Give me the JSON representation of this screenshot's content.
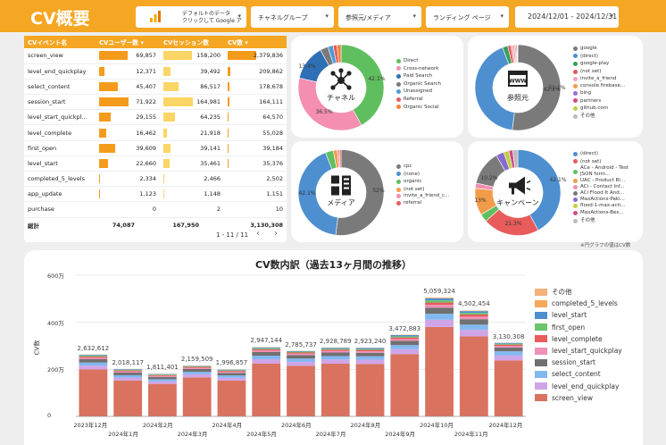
{
  "header": {
    "title": "CV概要",
    "filters": {
      "ga": "デフォルトのデータ\nクリックして Google ア",
      "channel": "チャネルグループ",
      "referrer": "参照元/メディア",
      "landing": "ランディング ページ",
      "date": "2024/12/01 - 2024/12/31"
    }
  },
  "table": {
    "headers": [
      "CVイベント名",
      "CVユーザー数 ▾",
      "CVセッション数",
      "CV数 ▾"
    ],
    "rows": [
      {
        "name": "screen_view",
        "users": "69,857",
        "users_v": 69857,
        "sessions": "158,200",
        "sessions_v": 158200,
        "cv": "2,379,836",
        "cv_v": 2379836
      },
      {
        "name": "level_end_quickplay",
        "users": "12,371",
        "users_v": 12371,
        "sessions": "39,492",
        "sessions_v": 39492,
        "cv": "209,862",
        "cv_v": 209862
      },
      {
        "name": "select_content",
        "users": "45,407",
        "users_v": 45407,
        "sessions": "86,517",
        "sessions_v": 86517,
        "cv": "178,678",
        "cv_v": 178678
      },
      {
        "name": "session_start",
        "users": "71,922",
        "users_v": 71922,
        "sessions": "164,981",
        "sessions_v": 164981,
        "cv": "164,111",
        "cv_v": 164111
      },
      {
        "name": "level_start_quickpl...",
        "users": "29,155",
        "users_v": 29155,
        "sessions": "64,235",
        "sessions_v": 64235,
        "cv": "64,570",
        "cv_v": 64570
      },
      {
        "name": "level_complete",
        "users": "16,462",
        "users_v": 16462,
        "sessions": "21,918",
        "sessions_v": 21918,
        "cv": "55,028",
        "cv_v": 55028
      },
      {
        "name": "first_open",
        "users": "39,609",
        "users_v": 39609,
        "sessions": "39,141",
        "sessions_v": 39141,
        "cv": "39,184",
        "cv_v": 39184
      },
      {
        "name": "level_start",
        "users": "22,660",
        "users_v": 22660,
        "sessions": "35,461",
        "sessions_v": 35461,
        "cv": "35,376",
        "cv_v": 35376
      },
      {
        "name": "completed_5_levels",
        "users": "2,334",
        "users_v": 2334,
        "sessions": "2,466",
        "sessions_v": 2466,
        "cv": "2,502",
        "cv_v": 2502
      },
      {
        "name": "app_update",
        "users": "1,123",
        "users_v": 1123,
        "sessions": "1,148",
        "sessions_v": 1148,
        "cv": "1,151",
        "cv_v": 1151
      },
      {
        "name": "purchase",
        "users": "0",
        "users_v": 0,
        "sessions": "2",
        "sessions_v": 2,
        "cv": "10",
        "cv_v": 10
      }
    ],
    "total": {
      "label": "総計",
      "users": "74,087",
      "sessions": "167,950",
      "cv": "3,130,308"
    },
    "pager": "1 - 11 / 11",
    "prev": "‹",
    "next": "›"
  },
  "donuts": [
    {
      "title": "チャネル",
      "icon": "network-icon",
      "labels": [
        "42.1%",
        "36.5%",
        "13.4%"
      ],
      "legend": [
        {
          "name": "Direct",
          "color": "#5fbf5f"
        },
        {
          "name": "Cross-network",
          "color": "#f48fb1"
        },
        {
          "name": "Paid Search",
          "color": "#2f6fb5"
        },
        {
          "name": "Organic Search",
          "color": "#7a7a7a"
        },
        {
          "name": "Unassigned",
          "color": "#4e9bd8"
        },
        {
          "name": "Referral",
          "color": "#e85c5c"
        },
        {
          "name": "Organic Social",
          "color": "#f2823a"
        }
      ]
    },
    {
      "title": "参照元",
      "icon": "www-icon",
      "labels": [
        "42.1%",
        "52.1%"
      ],
      "legend": [
        {
          "name": "google",
          "color": "#7a7a7a"
        },
        {
          "name": "(direct)",
          "color": "#4e8fd0"
        },
        {
          "name": "google-play",
          "color": "#3a9e5a"
        },
        {
          "name": "(not set)",
          "color": "#e05a5a"
        },
        {
          "name": "invite_a_friend",
          "color": "#f4a0c0"
        },
        {
          "name": "console.firebase...",
          "color": "#f29c4a"
        },
        {
          "name": "bing",
          "color": "#9a6ad0"
        },
        {
          "name": "partners",
          "color": "#d04a8a"
        },
        {
          "name": "github.com",
          "color": "#c0d040"
        },
        {
          "name": "その他",
          "color": "#bbbbbb"
        }
      ]
    },
    {
      "title": "メディア",
      "icon": "media-icon",
      "labels": [
        "42.1%",
        "52%"
      ],
      "legend": [
        {
          "name": "cpc",
          "color": "#7a7a7a"
        },
        {
          "name": "(none)",
          "color": "#4e8fd0"
        },
        {
          "name": "organic",
          "color": "#5fbf5f"
        },
        {
          "name": "(not set)",
          "color": "#f29c4a"
        },
        {
          "name": "invite_a_friend_c...",
          "color": "#f48fb1"
        },
        {
          "name": "referral",
          "color": "#e85c5c"
        }
      ]
    },
    {
      "title": "キャンペーン",
      "icon": "megaphone-icon",
      "labels": [
        "42.1%",
        "21.3%",
        "13%",
        "10.2%"
      ],
      "legend": [
        {
          "name": "(direct)",
          "color": "#4e8fd0"
        },
        {
          "name": "(not set)",
          "color": "#e85c5c"
        },
        {
          "name": "ACe - Android - Test JSON form...",
          "color": "#5fbf5f"
        },
        {
          "name": "UAC - Product Bi...",
          "color": "#f29c4a"
        },
        {
          "name": "ACi - Contact Inf...",
          "color": "#f48fb1"
        },
        {
          "name": "ACi Flood It And...",
          "color": "#7a7a7a"
        },
        {
          "name": "MaxActions-Paki...",
          "color": "#8a6ad0"
        },
        {
          "name": "flood-1-max-acti...",
          "color": "#c0d040"
        },
        {
          "name": "MaxActions-Bes...",
          "color": "#d04a8a"
        },
        {
          "name": "その他",
          "color": "#bbbbbb"
        }
      ]
    }
  ],
  "note": "※円グラフの値はCV数",
  "colors": {
    "accent": "#f5a623"
  },
  "chart_data": {
    "type": "bar",
    "title": "CV数内訳（過去13ヶ月間の推移）",
    "ylabel": "CV数",
    "ylim": [
      0,
      6000000
    ],
    "yticks": [
      "0",
      "200万",
      "400万",
      "600万"
    ],
    "categories": [
      "2023年12月",
      "2024年1月",
      "2024年2月",
      "2024年3月",
      "2024年4月",
      "2024年5月",
      "2024年6月",
      "2024年7月",
      "2024年8月",
      "2024年9月",
      "2024年10月",
      "2024年11月",
      "2024年12月"
    ],
    "totals": [
      2632612,
      2018117,
      1811401,
      2159509,
      1996857,
      2947144,
      2785737,
      2928789,
      2923240,
      3472883,
      5059324,
      4502454,
      3130308
    ],
    "total_labels": [
      "2,632,612",
      "2,018,117",
      "1,811,401",
      "2,159,509",
      "1,996,857",
      "2,947,144",
      "2,785,737",
      "2,928,789",
      "2,923,240",
      "3,472,883",
      "5,059,324",
      "4,502,454",
      "3,130,308"
    ],
    "series": [
      {
        "name": "screen_view",
        "color": "#d9725f",
        "values": [
          2000000,
          1530000,
          1380000,
          1660000,
          1520000,
          2250000,
          2150000,
          2240000,
          2230000,
          2650000,
          3800000,
          3400000,
          2380000
        ]
      },
      {
        "name": "level_end_quickplay",
        "color": "#cfa5e8",
        "values": [
          160000,
          120000,
          110000,
          130000,
          120000,
          180000,
          170000,
          180000,
          180000,
          210000,
          310000,
          280000,
          210000
        ]
      },
      {
        "name": "select_content",
        "color": "#82b8f0",
        "values": [
          130000,
          100000,
          90000,
          105000,
          100000,
          150000,
          140000,
          145000,
          145000,
          170000,
          250000,
          220000,
          178000
        ]
      },
      {
        "name": "session_start",
        "color": "#707070",
        "values": [
          140000,
          110000,
          100000,
          120000,
          110000,
          155000,
          145000,
          150000,
          150000,
          180000,
          260000,
          230000,
          164000
        ]
      },
      {
        "name": "level_start_quickplay",
        "color": "#f090b8",
        "values": [
          60000,
          50000,
          40000,
          50000,
          45000,
          65000,
          60000,
          65000,
          65000,
          80000,
          120000,
          110000,
          65000
        ]
      },
      {
        "name": "level_complete",
        "color": "#e85c5c",
        "values": [
          50000,
          40000,
          35000,
          40000,
          38000,
          55000,
          50000,
          55000,
          55000,
          65000,
          100000,
          90000,
          55000
        ]
      },
      {
        "name": "first_open",
        "color": "#6cc46c",
        "values": [
          40000,
          30000,
          25000,
          28000,
          28000,
          40000,
          35000,
          38000,
          38000,
          45000,
          90000,
          70000,
          39000
        ]
      },
      {
        "name": "level_start",
        "color": "#4e8fd0",
        "values": [
          35000,
          28000,
          21000,
          16000,
          25000,
          38000,
          25000,
          42000,
          47000,
          55000,
          90000,
          75000,
          35000
        ]
      },
      {
        "name": "completed_5_levels",
        "color": "#f5a85a",
        "values": [
          7612,
          6117,
          5401,
          5509,
          5857,
          9144,
          5737,
          8789,
          8240,
          12883,
          24324,
          17454,
          2502
        ]
      },
      {
        "name": "その他",
        "color": "#f2b07a",
        "values": [
          10000,
          4000,
          5000,
          5000,
          5000,
          5000,
          5000,
          5000,
          5000,
          5000,
          15000,
          10000,
          1806
        ]
      }
    ]
  }
}
